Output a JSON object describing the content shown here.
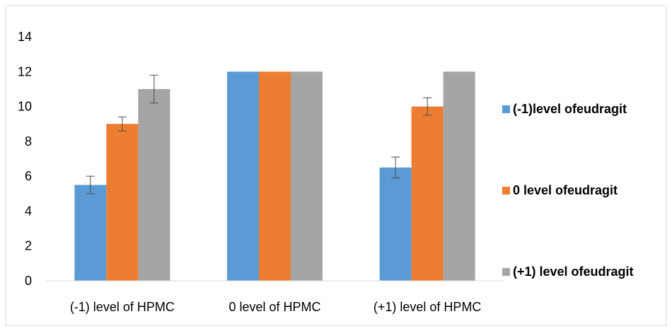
{
  "chart_data": {
    "type": "bar",
    "title": "",
    "xlabel": "",
    "ylabel": "",
    "ylim": [
      0,
      14
    ],
    "yticks": [
      0,
      2,
      4,
      6,
      8,
      10,
      12,
      14
    ],
    "grid": false,
    "legend_position": "right",
    "categories": [
      "(-1) level of HPMC",
      "0 level of HPMC",
      "(+1) level of HPMC"
    ],
    "series": [
      {
        "name": "(-1)level ofeudragit",
        "color": "#5b9bd5",
        "values": [
          5.5,
          12,
          6.5
        ],
        "error": [
          0.5,
          null,
          0.6
        ]
      },
      {
        "name": "0 level ofeudragit",
        "color": "#ed7d31",
        "values": [
          9,
          12,
          10
        ],
        "error": [
          0.4,
          null,
          0.5
        ]
      },
      {
        "name": "(+1) level ofeudragit",
        "color": "#a5a5a5",
        "values": [
          11,
          12,
          12
        ],
        "error": [
          0.8,
          null,
          null
        ]
      }
    ]
  }
}
